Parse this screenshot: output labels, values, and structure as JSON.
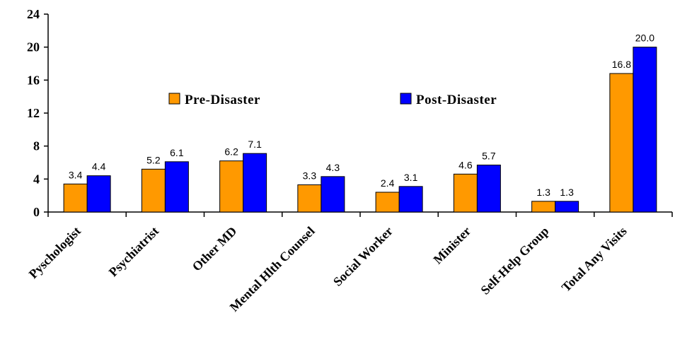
{
  "chart_data": {
    "type": "bar",
    "title": "",
    "xlabel": "",
    "ylabel": "",
    "ylim": [
      0,
      24
    ],
    "yticks": [
      0,
      4,
      8,
      12,
      16,
      20,
      24
    ],
    "grid": false,
    "legend_position": "top-center",
    "categories": [
      "Pyschologist",
      "Psychiatrist",
      "Other MD",
      "Mental Hlth Counsel",
      "Social Worker",
      "Minister",
      "Self-Help Group",
      "Total Any Visits"
    ],
    "series": [
      {
        "name": "Pre-Disaster",
        "color": "#FF9900",
        "values": [
          3.4,
          5.2,
          6.2,
          3.3,
          2.4,
          4.6,
          1.3,
          16.8
        ],
        "labels": [
          "3.4",
          "5.2",
          "6.2",
          "3.3",
          "2.4",
          "4.6",
          "1.3",
          "16.8"
        ]
      },
      {
        "name": "Post-Disaster",
        "color": "#0000FF",
        "values": [
          4.4,
          6.1,
          7.1,
          4.3,
          3.1,
          5.7,
          1.3,
          20.0
        ],
        "labels": [
          "4.4",
          "6.1",
          "7.1",
          "4.3",
          "3.1",
          "5.7",
          "1.3",
          "20.0"
        ]
      }
    ]
  }
}
